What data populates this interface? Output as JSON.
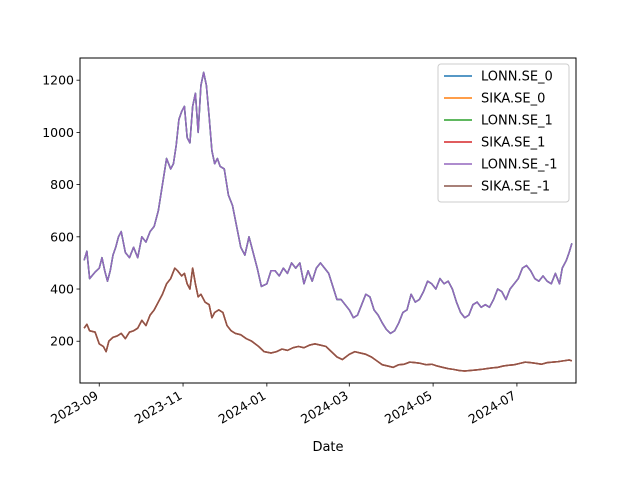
{
  "chart_data": {
    "type": "line",
    "title": "",
    "xlabel": "Date",
    "ylabel": "",
    "x_ticks": [
      "2023-09",
      "2023-11",
      "2024-01",
      "2024-03",
      "2024-05",
      "2024-07"
    ],
    "y_ticks": [
      "200",
      "400",
      "600",
      "800",
      "1000",
      "1200"
    ],
    "ylim": [
      40,
      1285
    ],
    "xlim": [
      "2023-08-18",
      "2024-08-13"
    ],
    "grid": false,
    "legend_position": "top-right",
    "series": [
      {
        "name": "LONN.SE_0",
        "color": "#1f77b4",
        "points": [
          [
            "2023-08-21",
            510
          ],
          [
            "2023-08-23",
            545
          ],
          [
            "2023-08-25",
            440
          ],
          [
            "2023-08-29",
            465
          ],
          [
            "2023-09-01",
            480
          ],
          [
            "2023-09-03",
            520
          ],
          [
            "2023-09-05",
            470
          ],
          [
            "2023-09-07",
            430
          ],
          [
            "2023-09-09",
            470
          ],
          [
            "2023-09-11",
            530
          ],
          [
            "2023-09-13",
            560
          ],
          [
            "2023-09-15",
            600
          ],
          [
            "2023-09-17",
            620
          ],
          [
            "2023-09-20",
            540
          ],
          [
            "2023-09-23",
            520
          ],
          [
            "2023-09-26",
            560
          ],
          [
            "2023-09-29",
            520
          ],
          [
            "2023-10-02",
            600
          ],
          [
            "2023-10-05",
            580
          ],
          [
            "2023-10-08",
            620
          ],
          [
            "2023-10-11",
            640
          ],
          [
            "2023-10-14",
            700
          ],
          [
            "2023-10-17",
            800
          ],
          [
            "2023-10-20",
            900
          ],
          [
            "2023-10-23",
            860
          ],
          [
            "2023-10-25",
            880
          ],
          [
            "2023-10-27",
            950
          ],
          [
            "2023-10-29",
            1050
          ],
          [
            "2023-10-31",
            1080
          ],
          [
            "2023-11-02",
            1100
          ],
          [
            "2023-11-04",
            980
          ],
          [
            "2023-11-06",
            960
          ],
          [
            "2023-11-08",
            1100
          ],
          [
            "2023-11-10",
            1150
          ],
          [
            "2023-11-12",
            1000
          ],
          [
            "2023-11-14",
            1180
          ],
          [
            "2023-11-16",
            1230
          ],
          [
            "2023-11-18",
            1180
          ],
          [
            "2023-11-20",
            1060
          ],
          [
            "2023-11-22",
            930
          ],
          [
            "2023-11-24",
            880
          ],
          [
            "2023-11-26",
            900
          ],
          [
            "2023-11-28",
            870
          ],
          [
            "2023-12-01",
            860
          ],
          [
            "2023-12-04",
            760
          ],
          [
            "2023-12-07",
            720
          ],
          [
            "2023-12-10",
            640
          ],
          [
            "2023-12-13",
            560
          ],
          [
            "2023-12-16",
            530
          ],
          [
            "2023-12-19",
            600
          ],
          [
            "2023-12-22",
            540
          ],
          [
            "2023-12-25",
            480
          ],
          [
            "2023-12-28",
            410
          ],
          [
            "2024-01-01",
            420
          ],
          [
            "2024-01-04",
            470
          ],
          [
            "2024-01-07",
            470
          ],
          [
            "2024-01-10",
            450
          ],
          [
            "2024-01-13",
            480
          ],
          [
            "2024-01-16",
            460
          ],
          [
            "2024-01-19",
            500
          ],
          [
            "2024-01-22",
            480
          ],
          [
            "2024-01-25",
            500
          ],
          [
            "2024-01-28",
            420
          ],
          [
            "2024-01-31",
            470
          ],
          [
            "2024-02-03",
            430
          ],
          [
            "2024-02-06",
            480
          ],
          [
            "2024-02-09",
            500
          ],
          [
            "2024-02-12",
            480
          ],
          [
            "2024-02-15",
            460
          ],
          [
            "2024-02-18",
            410
          ],
          [
            "2024-02-21",
            360
          ],
          [
            "2024-02-24",
            360
          ],
          [
            "2024-02-27",
            340
          ],
          [
            "2024-03-01",
            320
          ],
          [
            "2024-03-04",
            290
          ],
          [
            "2024-03-07",
            300
          ],
          [
            "2024-03-10",
            340
          ],
          [
            "2024-03-13",
            380
          ],
          [
            "2024-03-16",
            370
          ],
          [
            "2024-03-19",
            320
          ],
          [
            "2024-03-22",
            300
          ],
          [
            "2024-03-25",
            270
          ],
          [
            "2024-03-28",
            245
          ],
          [
            "2024-03-31",
            230
          ],
          [
            "2024-04-03",
            240
          ],
          [
            "2024-04-06",
            270
          ],
          [
            "2024-04-09",
            310
          ],
          [
            "2024-04-12",
            320
          ],
          [
            "2024-04-15",
            380
          ],
          [
            "2024-04-18",
            350
          ],
          [
            "2024-04-21",
            360
          ],
          [
            "2024-04-24",
            390
          ],
          [
            "2024-04-27",
            430
          ],
          [
            "2024-04-30",
            420
          ],
          [
            "2024-05-03",
            400
          ],
          [
            "2024-05-06",
            440
          ],
          [
            "2024-05-09",
            420
          ],
          [
            "2024-05-12",
            430
          ],
          [
            "2024-05-15",
            400
          ],
          [
            "2024-05-18",
            350
          ],
          [
            "2024-05-21",
            310
          ],
          [
            "2024-05-24",
            290
          ],
          [
            "2024-05-27",
            300
          ],
          [
            "2024-05-30",
            340
          ],
          [
            "2024-06-02",
            350
          ],
          [
            "2024-06-05",
            330
          ],
          [
            "2024-06-08",
            340
          ],
          [
            "2024-06-11",
            330
          ],
          [
            "2024-06-14",
            360
          ],
          [
            "2024-06-17",
            400
          ],
          [
            "2024-06-20",
            390
          ],
          [
            "2024-06-23",
            360
          ],
          [
            "2024-06-26",
            400
          ],
          [
            "2024-06-29",
            420
          ],
          [
            "2024-07-02",
            440
          ],
          [
            "2024-07-05",
            480
          ],
          [
            "2024-07-08",
            490
          ],
          [
            "2024-07-11",
            470
          ],
          [
            "2024-07-14",
            440
          ],
          [
            "2024-07-17",
            430
          ],
          [
            "2024-07-20",
            450
          ],
          [
            "2024-07-23",
            430
          ],
          [
            "2024-07-26",
            420
          ],
          [
            "2024-07-29",
            460
          ],
          [
            "2024-08-01",
            420
          ],
          [
            "2024-08-03",
            480
          ],
          [
            "2024-08-06",
            510
          ],
          [
            "2024-08-08",
            540
          ],
          [
            "2024-08-10",
            575
          ]
        ]
      },
      {
        "name": "SIKA.SE_0",
        "color": "#ff7f0e",
        "points": [
          [
            "2023-08-21",
            250
          ],
          [
            "2023-08-23",
            265
          ],
          [
            "2023-08-25",
            240
          ],
          [
            "2023-08-29",
            235
          ],
          [
            "2023-09-01",
            190
          ],
          [
            "2023-09-04",
            180
          ],
          [
            "2023-09-06",
            160
          ],
          [
            "2023-09-08",
            200
          ],
          [
            "2023-09-11",
            215
          ],
          [
            "2023-09-14",
            220
          ],
          [
            "2023-09-17",
            230
          ],
          [
            "2023-09-20",
            210
          ],
          [
            "2023-09-23",
            235
          ],
          [
            "2023-09-26",
            240
          ],
          [
            "2023-09-29",
            250
          ],
          [
            "2023-10-02",
            280
          ],
          [
            "2023-10-05",
            260
          ],
          [
            "2023-10-08",
            300
          ],
          [
            "2023-10-11",
            320
          ],
          [
            "2023-10-14",
            350
          ],
          [
            "2023-10-17",
            380
          ],
          [
            "2023-10-20",
            420
          ],
          [
            "2023-10-23",
            440
          ],
          [
            "2023-10-26",
            480
          ],
          [
            "2023-10-28",
            470
          ],
          [
            "2023-10-31",
            450
          ],
          [
            "2023-11-02",
            460
          ],
          [
            "2023-11-04",
            420
          ],
          [
            "2023-11-06",
            400
          ],
          [
            "2023-11-08",
            480
          ],
          [
            "2023-11-10",
            420
          ],
          [
            "2023-11-12",
            370
          ],
          [
            "2023-11-14",
            380
          ],
          [
            "2023-11-17",
            350
          ],
          [
            "2023-11-20",
            340
          ],
          [
            "2023-11-22",
            290
          ],
          [
            "2023-11-24",
            310
          ],
          [
            "2023-11-27",
            320
          ],
          [
            "2023-11-30",
            310
          ],
          [
            "2023-12-03",
            260
          ],
          [
            "2023-12-06",
            240
          ],
          [
            "2023-12-09",
            230
          ],
          [
            "2023-12-13",
            225
          ],
          [
            "2023-12-17",
            210
          ],
          [
            "2023-12-21",
            200
          ],
          [
            "2023-12-26",
            180
          ],
          [
            "2023-12-30",
            160
          ],
          [
            "2024-01-04",
            155
          ],
          [
            "2024-01-08",
            160
          ],
          [
            "2024-01-12",
            170
          ],
          [
            "2024-01-16",
            165
          ],
          [
            "2024-01-20",
            175
          ],
          [
            "2024-01-24",
            180
          ],
          [
            "2024-01-28",
            175
          ],
          [
            "2024-02-01",
            185
          ],
          [
            "2024-02-05",
            190
          ],
          [
            "2024-02-09",
            185
          ],
          [
            "2024-02-13",
            180
          ],
          [
            "2024-02-17",
            160
          ],
          [
            "2024-02-21",
            140
          ],
          [
            "2024-02-25",
            130
          ],
          [
            "2024-03-01",
            150
          ],
          [
            "2024-03-05",
            160
          ],
          [
            "2024-03-09",
            155
          ],
          [
            "2024-03-13",
            150
          ],
          [
            "2024-03-17",
            140
          ],
          [
            "2024-03-21",
            125
          ],
          [
            "2024-03-25",
            110
          ],
          [
            "2024-03-29",
            105
          ],
          [
            "2024-04-02",
            100
          ],
          [
            "2024-04-06",
            110
          ],
          [
            "2024-04-10",
            112
          ],
          [
            "2024-04-14",
            120
          ],
          [
            "2024-04-18",
            118
          ],
          [
            "2024-04-22",
            115
          ],
          [
            "2024-04-26",
            110
          ],
          [
            "2024-04-30",
            112
          ],
          [
            "2024-05-04",
            105
          ],
          [
            "2024-05-08",
            100
          ],
          [
            "2024-05-12",
            95
          ],
          [
            "2024-05-16",
            92
          ],
          [
            "2024-05-20",
            88
          ],
          [
            "2024-05-24",
            86
          ],
          [
            "2024-05-28",
            88
          ],
          [
            "2024-06-01",
            90
          ],
          [
            "2024-06-05",
            92
          ],
          [
            "2024-06-09",
            95
          ],
          [
            "2024-06-13",
            98
          ],
          [
            "2024-06-17",
            100
          ],
          [
            "2024-06-21",
            105
          ],
          [
            "2024-06-25",
            108
          ],
          [
            "2024-06-29",
            110
          ],
          [
            "2024-07-03",
            115
          ],
          [
            "2024-07-07",
            120
          ],
          [
            "2024-07-11",
            118
          ],
          [
            "2024-07-15",
            115
          ],
          [
            "2024-07-19",
            112
          ],
          [
            "2024-07-23",
            118
          ],
          [
            "2024-07-27",
            120
          ],
          [
            "2024-07-31",
            122
          ],
          [
            "2024-08-04",
            125
          ],
          [
            "2024-08-08",
            128
          ],
          [
            "2024-08-10",
            125
          ]
        ]
      },
      {
        "name": "LONN.SE_1",
        "color": "#2ca02c",
        "same_as": "LONN.SE_0"
      },
      {
        "name": "SIKA.SE_1",
        "color": "#d62728",
        "same_as": "SIKA.SE_0"
      },
      {
        "name": "LONN.SE_-1",
        "color": "#9467bd",
        "same_as": "LONN.SE_0"
      },
      {
        "name": "SIKA.SE_-1",
        "color": "#8c564b",
        "same_as": "SIKA.SE_0"
      }
    ]
  }
}
